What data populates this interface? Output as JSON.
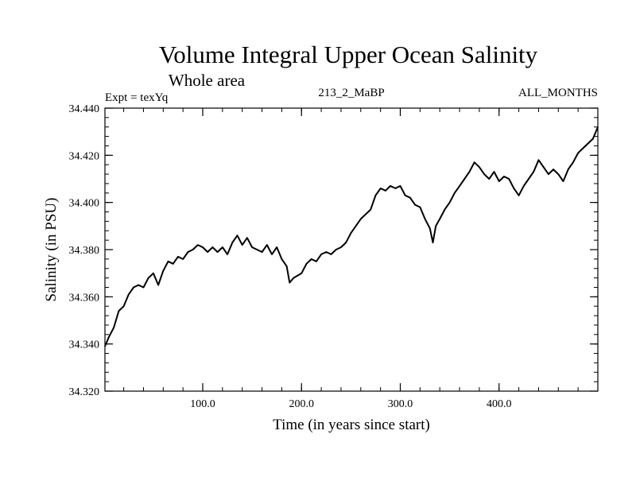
{
  "colors": {
    "background": "#ffffff",
    "line": "#000000"
  },
  "chart_data": {
    "type": "line",
    "title": "Volume Integral Upper Ocean Salinity",
    "subtitle": "Whole area",
    "info_left": "Expt = texYq",
    "info_center": "213_2_MaBP",
    "info_right": "ALL_MONTHS",
    "xlabel": "Time (in years since start)",
    "ylabel": "Salinity (in PSU)",
    "xlim": [
      1,
      500
    ],
    "ylim": [
      34.32,
      34.44
    ],
    "x_ticks": [
      {
        "value": 100,
        "label": "100.0"
      },
      {
        "value": 200,
        "label": "200.0"
      },
      {
        "value": 300,
        "label": "300.0"
      },
      {
        "value": 400,
        "label": "400.0"
      }
    ],
    "y_ticks": [
      {
        "value": 34.32,
        "label": "34.320"
      },
      {
        "value": 34.34,
        "label": "34.340"
      },
      {
        "value": 34.36,
        "label": "34.360"
      },
      {
        "value": 34.38,
        "label": "34.380"
      },
      {
        "value": 34.4,
        "label": "34.400"
      },
      {
        "value": 34.42,
        "label": "34.420"
      },
      {
        "value": 34.44,
        "label": "34.440"
      }
    ],
    "x_minor_step": 20,
    "y_minor_step": 0.004,
    "grid": false,
    "series": [
      {
        "x": [
          1,
          5,
          10,
          15,
          20,
          25,
          30,
          35,
          40,
          45,
          50,
          55,
          60,
          65,
          70,
          75,
          80,
          85,
          90,
          95,
          100,
          105,
          110,
          115,
          120,
          125,
          130,
          135,
          140,
          145,
          150,
          155,
          160,
          165,
          170,
          175,
          180,
          185,
          188,
          192,
          196,
          200,
          205,
          210,
          215,
          220,
          225,
          230,
          235,
          240,
          245,
          250,
          255,
          260,
          265,
          270,
          275,
          280,
          285,
          290,
          295,
          300,
          305,
          310,
          315,
          320,
          325,
          330,
          333,
          336,
          340,
          345,
          350,
          355,
          360,
          365,
          370,
          375,
          380,
          385,
          390,
          395,
          400,
          405,
          410,
          415,
          420,
          425,
          430,
          435,
          440,
          445,
          450,
          455,
          460,
          465,
          470,
          475,
          480,
          485,
          490,
          495,
          500
        ],
        "values": [
          34.339,
          34.343,
          34.347,
          34.354,
          34.356,
          34.361,
          34.364,
          34.365,
          34.364,
          34.368,
          34.37,
          34.365,
          34.371,
          34.375,
          34.374,
          34.377,
          34.376,
          34.379,
          34.38,
          34.382,
          34.381,
          34.379,
          34.381,
          34.379,
          34.381,
          34.378,
          34.383,
          34.386,
          34.382,
          34.385,
          34.381,
          34.38,
          34.379,
          34.382,
          34.378,
          34.381,
          34.376,
          34.373,
          34.366,
          34.368,
          34.369,
          34.37,
          34.374,
          34.376,
          34.375,
          34.378,
          34.379,
          34.378,
          34.38,
          34.381,
          34.383,
          34.387,
          34.39,
          34.393,
          34.395,
          34.397,
          34.403,
          34.406,
          34.405,
          34.407,
          34.406,
          34.407,
          34.403,
          34.402,
          34.399,
          34.398,
          34.393,
          34.389,
          34.383,
          34.39,
          34.393,
          34.397,
          34.4,
          34.404,
          34.407,
          34.41,
          34.413,
          34.417,
          34.415,
          34.412,
          34.41,
          34.413,
          34.409,
          34.411,
          34.41,
          34.406,
          34.403,
          34.407,
          34.41,
          34.413,
          34.418,
          34.415,
          34.412,
          34.414,
          34.412,
          34.409,
          34.414,
          34.417,
          34.421,
          34.423,
          34.425,
          34.427,
          34.432
        ]
      }
    ]
  }
}
